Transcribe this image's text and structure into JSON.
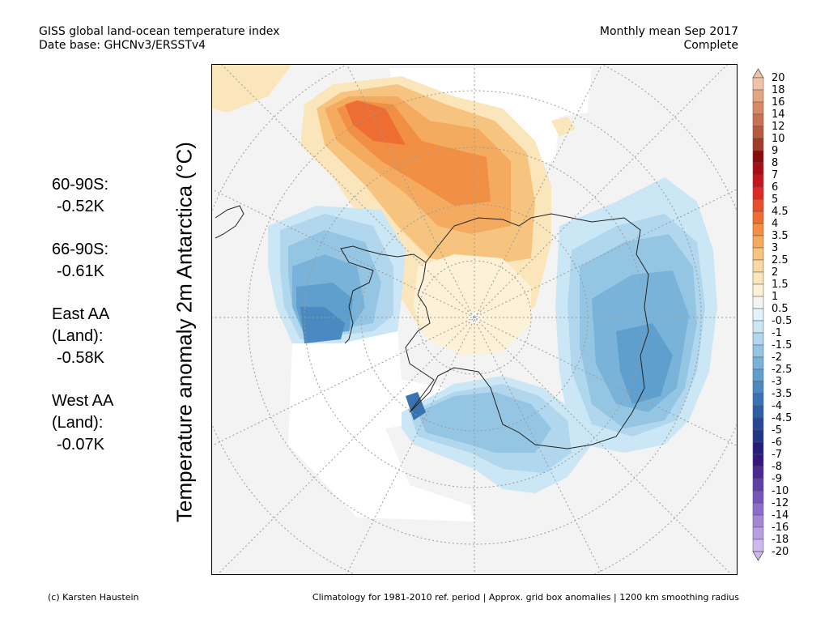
{
  "header": {
    "title": "GISS global land-ocean temperature index",
    "database": "Date base: GHCNv3/ERSSTv4",
    "period": "Monthly mean Sep 2017",
    "status": "Complete"
  },
  "y_axis_label": "Temperature anomaly 2m Antarctica (°C)",
  "stats": [
    {
      "name": "60-90S:",
      "value": "-0.52K"
    },
    {
      "name": "66-90S:",
      "value": "-0.61K"
    },
    {
      "name": "East AA\n(Land):",
      "value": "-0.58K"
    },
    {
      "name": "West AA\n(Land):",
      "value": "-0.07K"
    }
  ],
  "colorbar": {
    "labels": [
      "20",
      "18",
      "16",
      "14",
      "12",
      "10",
      "9",
      "8",
      "7",
      "6",
      "5",
      "4.5",
      "4",
      "3.5",
      "3",
      "2.5",
      "2",
      "1.5",
      "1",
      "0.5",
      "-0.5",
      "-1",
      "-1.5",
      "-2",
      "-2.5",
      "-3",
      "-3.5",
      "-4",
      "-4.5",
      "-5",
      "-6",
      "-7",
      "-8",
      "-9",
      "-10",
      "-12",
      "-14",
      "-16",
      "-18",
      "-20"
    ],
    "colors": [
      "#f2c2a8",
      "#e4a583",
      "#d88a67",
      "#c97153",
      "#b65a40",
      "#9f3d26",
      "#8b0a0a",
      "#a80f15",
      "#c8141c",
      "#dd2a25",
      "#e84e2a",
      "#ee6d33",
      "#f18f45",
      "#f5ab5f",
      "#f7c47f",
      "#fad8a2",
      "#fbe6bc",
      "#fdf1d8",
      "#f4f4f4",
      "#e4f2fb",
      "#cbe6f5",
      "#b0d7ed",
      "#94c5e3",
      "#79b3d9",
      "#5f9fce",
      "#4a89c1",
      "#3a73b2",
      "#2e5ea3",
      "#264994",
      "#213685",
      "#241e7a",
      "#35187e",
      "#4a2a92",
      "#5f40a6",
      "#7656b8",
      "#8d6dc8",
      "#a386d6",
      "#b89fe2",
      "#ccb9ee"
    ]
  },
  "footer": {
    "credit": "(c) Karsten Haustein",
    "note": "Climatology for 1981-2010 ref. period | Approx. grid box anomalies | 1200 km smoothing radius"
  }
}
